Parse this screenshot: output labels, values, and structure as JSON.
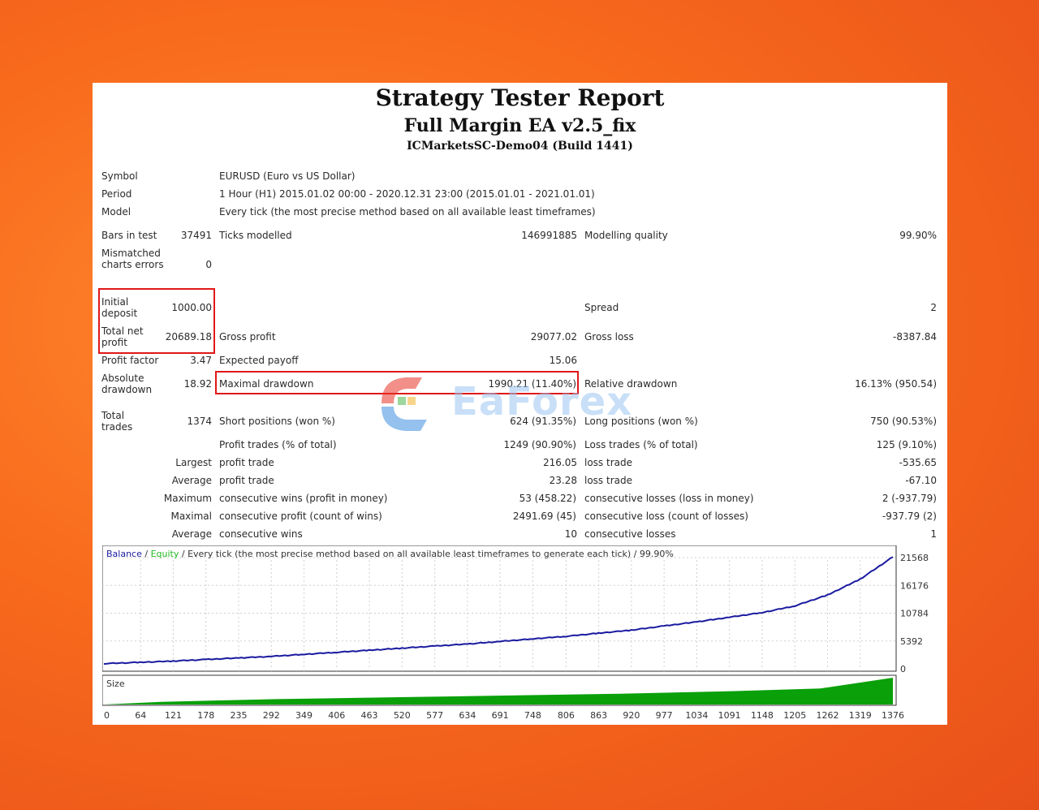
{
  "header": {
    "title": "Strategy Tester Report",
    "ea_name": "Full Margin EA v2.5_fix",
    "server": "ICMarketsSC-Demo04 (Build 1441)"
  },
  "info": {
    "symbol_label": "Symbol",
    "symbol_value": "EURUSD (Euro vs US Dollar)",
    "period_label": "Period",
    "period_value": "1 Hour (H1) 2015.01.02 00:00 - 2020.12.31 23:00 (2015.01.01 - 2021.01.01)",
    "model_label": "Model",
    "model_value": "Every tick (the most precise method based on all available least timeframes)"
  },
  "stats": {
    "bars_label": "Bars in test",
    "bars_value": "37491",
    "ticks_label": "Ticks modelled",
    "ticks_value": "146991885",
    "quality_label": "Modelling quality",
    "quality_value": "99.90%",
    "mismatched_label": "Mismatched charts errors",
    "mismatched_value": "0",
    "initial_label": "Initial deposit",
    "initial_value": "1000.00",
    "spread_label": "Spread",
    "spread_value": "2",
    "net_label": "Total net profit",
    "net_value": "20689.18",
    "gross_profit_label": "Gross profit",
    "gross_profit_value": "29077.02",
    "gross_loss_label": "Gross loss",
    "gross_loss_value": "-8387.84",
    "pf_label": "Profit factor",
    "pf_value": "3.47",
    "payoff_label": "Expected payoff",
    "payoff_value": "15.06",
    "abs_dd_label": "Absolute drawdown",
    "abs_dd_value": "18.92",
    "max_dd_label": "Maximal drawdown",
    "max_dd_value": "1990.21 (11.40%)",
    "rel_dd_label": "Relative drawdown",
    "rel_dd_value": "16.13% (950.54)",
    "total_trades_label": "Total trades",
    "total_trades_value": "1374",
    "short_label": "Short positions (won %)",
    "short_value": "624 (91.35%)",
    "long_label": "Long positions (won %)",
    "long_value": "750 (90.53%)",
    "profit_trades_label": "Profit trades (% of total)",
    "profit_trades_value": "1249 (90.90%)",
    "loss_trades_label": "Loss trades (% of total)",
    "loss_trades_value": "125 (9.10%)",
    "largest_label": "Largest",
    "largest_pt_label": "profit trade",
    "largest_pt_value": "216.05",
    "largest_lt_label": "loss trade",
    "largest_lt_value": "-535.65",
    "average_label": "Average",
    "average_pt_label": "profit trade",
    "average_pt_value": "23.28",
    "average_lt_label": "loss trade",
    "average_lt_value": "-67.10",
    "maximum_label": "Maximum",
    "max_cw_label": "consecutive wins (profit in money)",
    "max_cw_value": "53 (458.22)",
    "max_cl_label": "consecutive losses (loss in money)",
    "max_cl_value": "2 (-937.79)",
    "maximal_label": "Maximal",
    "maximal_cp_label": "consecutive profit (count of wins)",
    "maximal_cp_value": "2491.69 (45)",
    "maximal_cl_label": "consecutive loss (count of losses)",
    "maximal_cl_value": "-937.79 (2)",
    "avg2_label": "Average",
    "avg_cw_label": "consecutive wins",
    "avg_cw_value": "10",
    "avg_cl_label": "consecutive losses",
    "avg_cl_value": "1"
  },
  "watermark": {
    "text": "EaForex"
  },
  "colors": {
    "balance": "#1a1aa0",
    "equity": "#22bb22",
    "size": "#0aa00a",
    "highlight": "#e01818"
  },
  "chart_data": {
    "type": "line",
    "legend": {
      "balance": "Balance",
      "sep1": " / ",
      "equity": "Equity",
      "rest": " / Every tick (the most precise method based on all available least timeframes to generate each tick) / 99.90%"
    },
    "size_label": "Size",
    "yticks": [
      "21568",
      "16176",
      "10784",
      "5392",
      "0"
    ],
    "ylim": [
      0,
      21568
    ],
    "xticks": [
      "0",
      "64",
      "121",
      "178",
      "235",
      "292",
      "349",
      "406",
      "463",
      "520",
      "577",
      "634",
      "691",
      "748",
      "806",
      "863",
      "920",
      "977",
      "1034",
      "1091",
      "1148",
      "1205",
      "1262",
      "1319",
      "1376"
    ],
    "xlim": [
      0,
      1376
    ],
    "series": [
      {
        "name": "Balance",
        "points": [
          [
            0,
            1000
          ],
          [
            64,
            1250
          ],
          [
            121,
            1500
          ],
          [
            178,
            1800
          ],
          [
            235,
            2100
          ],
          [
            292,
            2400
          ],
          [
            349,
            2800
          ],
          [
            406,
            3200
          ],
          [
            463,
            3600
          ],
          [
            520,
            4000
          ],
          [
            577,
            4400
          ],
          [
            634,
            4800
          ],
          [
            691,
            5300
          ],
          [
            748,
            5800
          ],
          [
            806,
            6300
          ],
          [
            863,
            6900
          ],
          [
            920,
            7500
          ],
          [
            977,
            8300
          ],
          [
            1034,
            9100
          ],
          [
            1091,
            10000
          ],
          [
            1148,
            10900
          ],
          [
            1205,
            12200
          ],
          [
            1262,
            14300
          ],
          [
            1319,
            17400
          ],
          [
            1376,
            21690
          ]
        ]
      }
    ],
    "size_series": {
      "points": [
        [
          0,
          0
        ],
        [
          100,
          1
        ],
        [
          300,
          2
        ],
        [
          600,
          3
        ],
        [
          900,
          4
        ],
        [
          1100,
          5
        ],
        [
          1250,
          6
        ],
        [
          1376,
          10
        ]
      ],
      "ymax": 10
    }
  }
}
